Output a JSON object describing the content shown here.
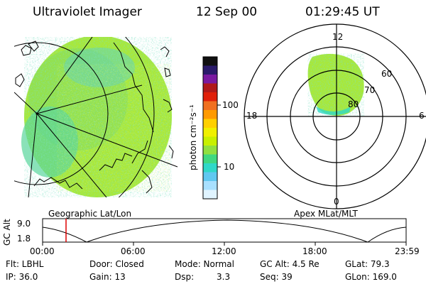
{
  "header": {
    "instrument": "Ultraviolet Imager",
    "date": "12 Sep 00",
    "time": "01:29:45 UT"
  },
  "panels": {
    "geographic_label": "Geographic Lat/Lon",
    "apex_label": "Apex MLat/MLT"
  },
  "colorbar": {
    "unit_label": "photon cm⁻²s⁻¹",
    "ticks": [
      "100",
      "10"
    ],
    "colors": [
      "#101010",
      "#2a1a6a",
      "#7a1aa0",
      "#b01a1a",
      "#e0200a",
      "#f07020",
      "#ff9a00",
      "#ffd000",
      "#f0f000",
      "#c8f000",
      "#90e040",
      "#40d880",
      "#30d8c8",
      "#60c8f0",
      "#a8e0ff",
      "#e0f4ff"
    ]
  },
  "polar_plot": {
    "mlt_labels": {
      "top": "12",
      "left": "18",
      "right": "6",
      "bottom": "0"
    },
    "lat_labels": [
      "60",
      "70",
      "80"
    ]
  },
  "altitude_plot": {
    "ylabel": "GC Alt",
    "yticks": [
      "9.0",
      "1.8"
    ],
    "xticks": [
      "00:00",
      "06:00",
      "12:00",
      "18:00",
      "23:59"
    ],
    "current_time_color": "#dd0000"
  },
  "status": {
    "flt": "Flt: LBHL",
    "ip": "IP: 36.0",
    "door": "Door: Closed",
    "gain": "Gain: 13",
    "mode": "Mode: Normal",
    "dsp_label": "Dsp:",
    "dsp_value": "3.3",
    "gc_alt": "GC Alt: 4.5 Re",
    "seq": "Seq: 39",
    "glat": "GLat:  79.3",
    "glon": "GLon: 169.0"
  }
}
